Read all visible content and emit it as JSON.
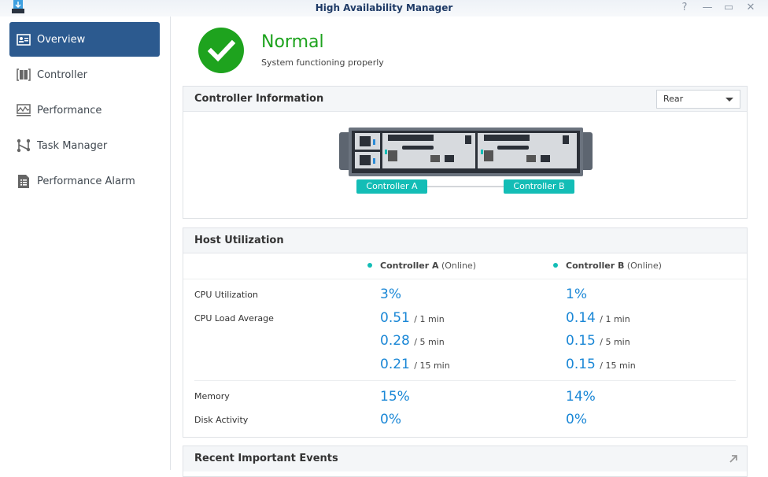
{
  "window": {
    "title": "High Availability Manager",
    "help": "?",
    "minimize": "—",
    "maximize": "▭",
    "close": "✕"
  },
  "sidebar": {
    "items": [
      {
        "label": "Overview",
        "icon": "overview-card-icon",
        "active": true
      },
      {
        "label": "Controller",
        "icon": "controller-icon"
      },
      {
        "label": "Performance",
        "icon": "performance-chart-icon"
      },
      {
        "label": "Task Manager",
        "icon": "task-flow-icon"
      },
      {
        "label": "Performance Alarm",
        "icon": "alarm-document-icon"
      }
    ]
  },
  "status": {
    "title": "Normal",
    "subtitle": "System functioning properly",
    "color": "#1ea31e"
  },
  "controller_info": {
    "title": "Controller Information",
    "view_select": "Rear",
    "controller_a": "Controller A",
    "controller_b": "Controller B"
  },
  "host_util": {
    "title": "Host Utilization",
    "col_a": {
      "name": "Controller A",
      "state": "(Online)"
    },
    "col_b": {
      "name": "Controller B",
      "state": "(Online)"
    },
    "labels": {
      "cpu": "CPU Utilization",
      "load": "CPU Load Average",
      "memory": "Memory",
      "disk": "Disk Activity"
    },
    "a": {
      "cpu": "3%",
      "load1": "0.51",
      "load5": "0.28",
      "load15": "0.21",
      "memory": "15%",
      "disk": "0%"
    },
    "b": {
      "cpu": "1%",
      "load1": "0.14",
      "load5": "0.15",
      "load15": "0.15",
      "memory": "14%",
      "disk": "0%"
    },
    "units": {
      "m1": "/ 1 min",
      "m5": "/ 5 min",
      "m15": "/ 15 min"
    }
  },
  "events": {
    "title": "Recent Important Events"
  },
  "colors": {
    "accent": "#2c5a8f",
    "value": "#1a87d6",
    "teal": "#13bdb6"
  }
}
